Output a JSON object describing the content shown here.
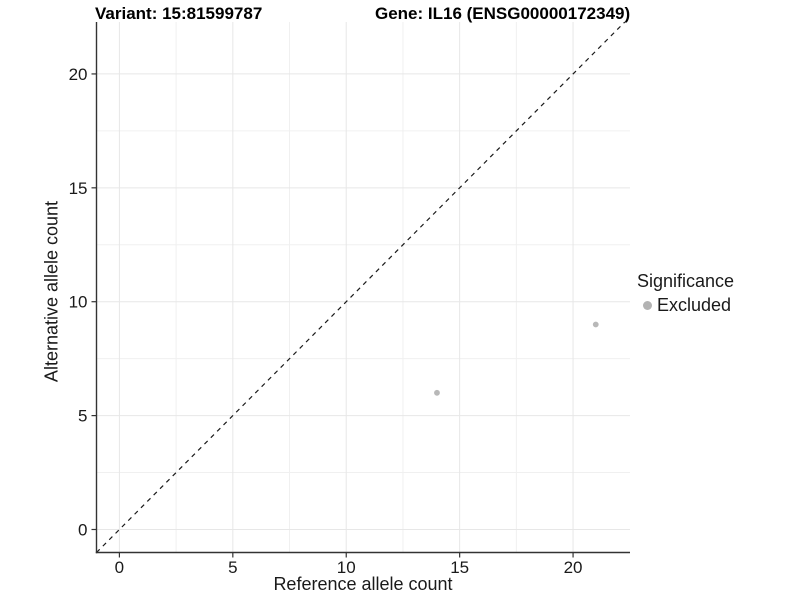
{
  "titles": {
    "variant": "Variant: 15:81599787",
    "gene": "Gene: IL16 (ENSG00000172349)"
  },
  "axes": {
    "x_label": "Reference allele count",
    "y_label": "Alternative allele count"
  },
  "legend": {
    "title": "Significance",
    "items": [
      {
        "label": "Excluded",
        "color": "#b3b3b3"
      }
    ]
  },
  "chart_data": {
    "type": "scatter",
    "title": "Variant: 15:81599787 / Gene: IL16 (ENSG00000172349)",
    "xlabel": "Reference allele count",
    "ylabel": "Alternative allele count",
    "series": [
      {
        "name": "Excluded",
        "color": "#b8b8b8",
        "points": [
          {
            "x": 14,
            "y": 6
          },
          {
            "x": 21,
            "y": 9
          }
        ]
      }
    ],
    "reference_line": {
      "equation": "y = x",
      "style": "dashed",
      "color": "#1a1a1a"
    },
    "x_ticks": [
      0,
      5,
      10,
      15,
      20
    ],
    "y_ticks": [
      0,
      5,
      10,
      15,
      20
    ],
    "xlim": [
      -1.01,
      22.51
    ],
    "ylim": [
      -1.01,
      22.28
    ],
    "minor_ticks": [
      2.5,
      7.5,
      12.5,
      17.5
    ],
    "grid": true,
    "legend_position": "right",
    "colors": {
      "point": "#b8b8b8",
      "major_grid": "#e7e7e7",
      "minor_grid": "#f0f0f0",
      "axis_line": "#333333",
      "tick_text": "#1a1a1a"
    }
  }
}
